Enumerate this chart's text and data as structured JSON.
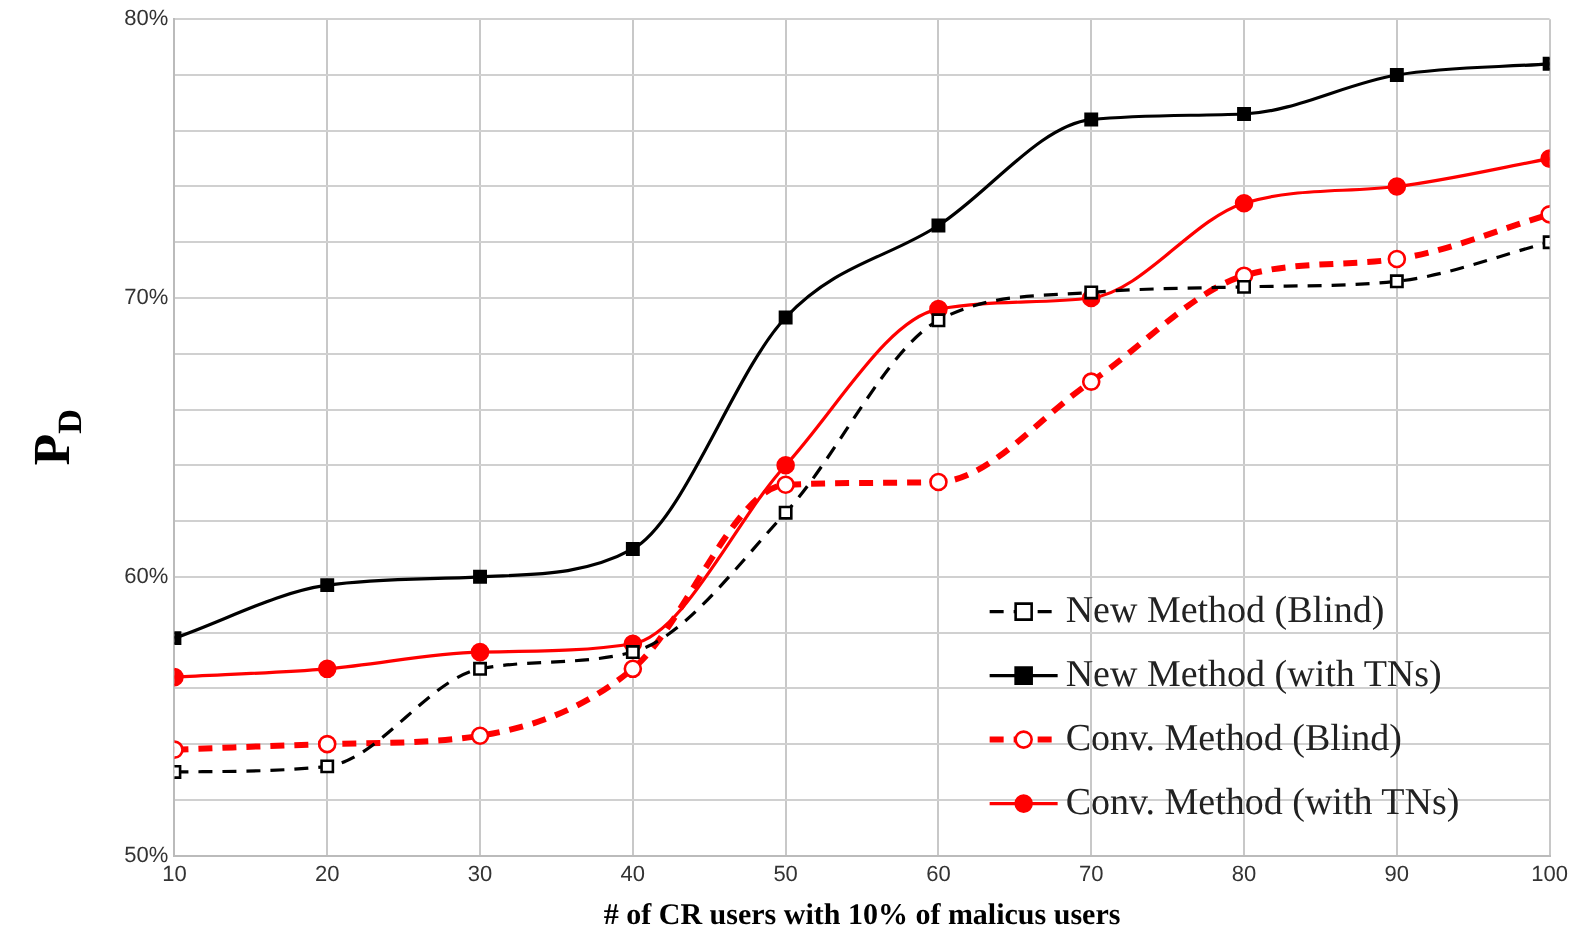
{
  "chart_data": {
    "type": "line",
    "xlabel": "# of CR users with 10% of malicus users",
    "ylabel": "P$_{D}$",
    "x": [
      10,
      20,
      30,
      40,
      50,
      60,
      70,
      80,
      90,
      100
    ],
    "xlim": [
      10,
      100
    ],
    "xticks": [
      10,
      20,
      30,
      40,
      50,
      60,
      70,
      80,
      90,
      100
    ],
    "ylim": [
      50,
      80
    ],
    "yticks": [
      {
        "value": 50,
        "label": "50%"
      },
      {
        "value": 52,
        "label": null
      },
      {
        "value": 54,
        "label": null
      },
      {
        "value": 56,
        "label": null
      },
      {
        "value": 58,
        "label": null
      },
      {
        "value": 60,
        "label": "60%"
      },
      {
        "value": 62,
        "label": null
      },
      {
        "value": 64,
        "label": null
      },
      {
        "value": 66,
        "label": null
      },
      {
        "value": 68,
        "label": null
      },
      {
        "value": 70,
        "label": "70%"
      },
      {
        "value": 72,
        "label": null
      },
      {
        "value": 74,
        "label": null
      },
      {
        "value": 76,
        "label": null
      },
      {
        "value": 78,
        "label": null
      },
      {
        "value": 80,
        "label": "80%"
      }
    ],
    "grid": true,
    "legend": "bottom right",
    "series": [
      {
        "name": "New Method (Blind)",
        "color": "#000000",
        "marker": "square",
        "line_style": "dashed",
        "values": [
          53.0,
          53.2,
          56.7,
          57.3,
          62.3,
          69.2,
          70.2,
          70.4,
          70.6,
          72.0
        ]
      },
      {
        "name": "New Method (with TNs)",
        "color": "#000000",
        "marker": "square",
        "line_style": "solid",
        "values": [
          57.8,
          59.7,
          60.0,
          61.0,
          69.3,
          72.6,
          76.4,
          76.6,
          78.0,
          78.4
        ]
      },
      {
        "name": "Conv. Method (Blind)",
        "color": "#ff0000",
        "marker": "circle",
        "line_style": "dashed",
        "values": [
          53.8,
          54.0,
          54.3,
          56.7,
          63.3,
          63.4,
          67.0,
          70.8,
          71.4,
          73.0
        ]
      },
      {
        "name": "Conv. Method (with TNs)",
        "color": "#ff0000",
        "marker": "circle",
        "line_style": "solid",
        "values": [
          56.4,
          56.7,
          57.3,
          57.6,
          64.0,
          69.6,
          70.0,
          73.4,
          74.0,
          75.0
        ]
      }
    ]
  }
}
